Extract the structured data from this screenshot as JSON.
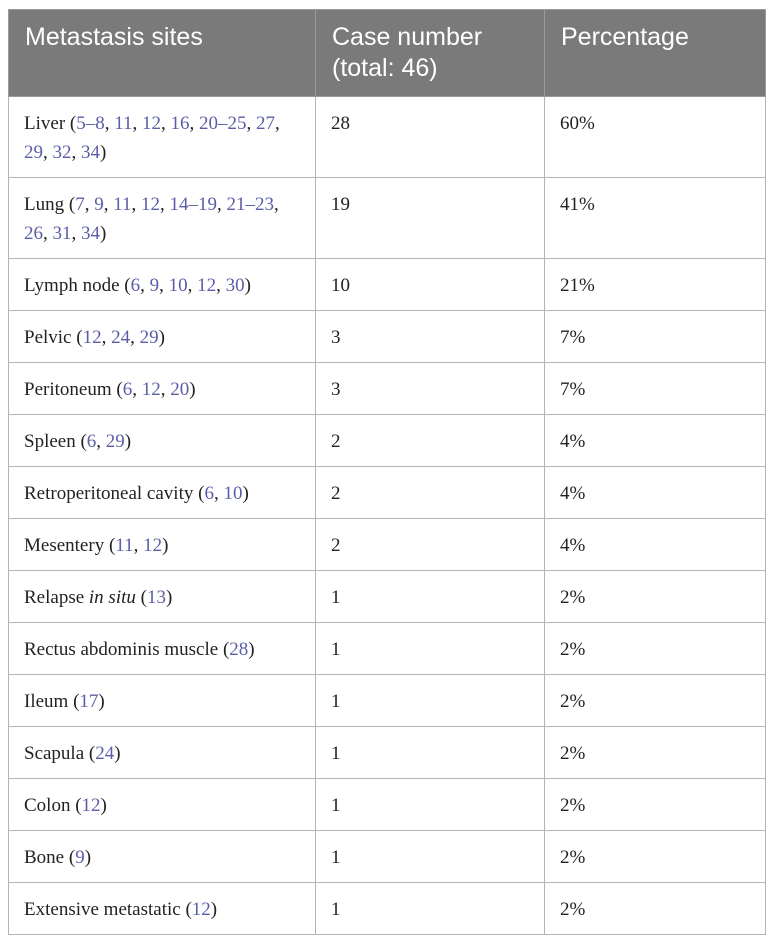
{
  "table": {
    "headers": [
      "Metastasis sites",
      "Case number (total: 46)",
      "Percentage"
    ],
    "rows": [
      {
        "site": "Liver",
        "refs": [
          "5–8",
          "11",
          "12",
          "16",
          "20–25",
          "27",
          "29",
          "32",
          "34"
        ],
        "cases": "28",
        "pct": "60%"
      },
      {
        "site": "Lung",
        "refs": [
          "7",
          "9",
          "11",
          "12",
          "14–19",
          "21–23",
          "26",
          "31",
          "34"
        ],
        "cases": "19",
        "pct": "41%"
      },
      {
        "site": "Lymph node",
        "refs": [
          "6",
          "9",
          "10",
          "12",
          "30"
        ],
        "cases": "10",
        "pct": "21%"
      },
      {
        "site": "Pelvic",
        "refs": [
          "12",
          "24",
          "29"
        ],
        "cases": "3",
        "pct": "7%"
      },
      {
        "site": "Peritoneum",
        "refs": [
          "6",
          "12",
          "20"
        ],
        "cases": "3",
        "pct": "7%"
      },
      {
        "site": "Spleen",
        "refs": [
          "6",
          "29"
        ],
        "cases": "2",
        "pct": "4%"
      },
      {
        "site": "Retroperitoneal cavity",
        "refs": [
          "6",
          "10"
        ],
        "cases": "2",
        "pct": "4%"
      },
      {
        "site": "Mesentery",
        "refs": [
          "11",
          "12"
        ],
        "cases": "2",
        "pct": "4%"
      },
      {
        "site": "Relapse",
        "site_italic": "in situ",
        "refs": [
          "13"
        ],
        "cases": "1",
        "pct": "2%"
      },
      {
        "site": "Rectus abdominis muscle",
        "refs": [
          "28"
        ],
        "cases": "1",
        "pct": "2%"
      },
      {
        "site": "Ileum",
        "refs": [
          "17"
        ],
        "cases": "1",
        "pct": "2%"
      },
      {
        "site": "Scapula",
        "refs": [
          "24"
        ],
        "cases": "1",
        "pct": "2%"
      },
      {
        "site": "Colon",
        "refs": [
          "12"
        ],
        "cases": "1",
        "pct": "2%"
      },
      {
        "site": "Bone",
        "refs": [
          "9"
        ],
        "cases": "1",
        "pct": "2%"
      },
      {
        "site": "Extensive metastatic",
        "refs": [
          "12"
        ],
        "cases": "1",
        "pct": "2%"
      }
    ]
  },
  "colors": {
    "header_bg": "#7a7a7a",
    "header_text": "#ffffff",
    "reference_link": "#5b5ea6",
    "grid": "#b5b5b5"
  }
}
